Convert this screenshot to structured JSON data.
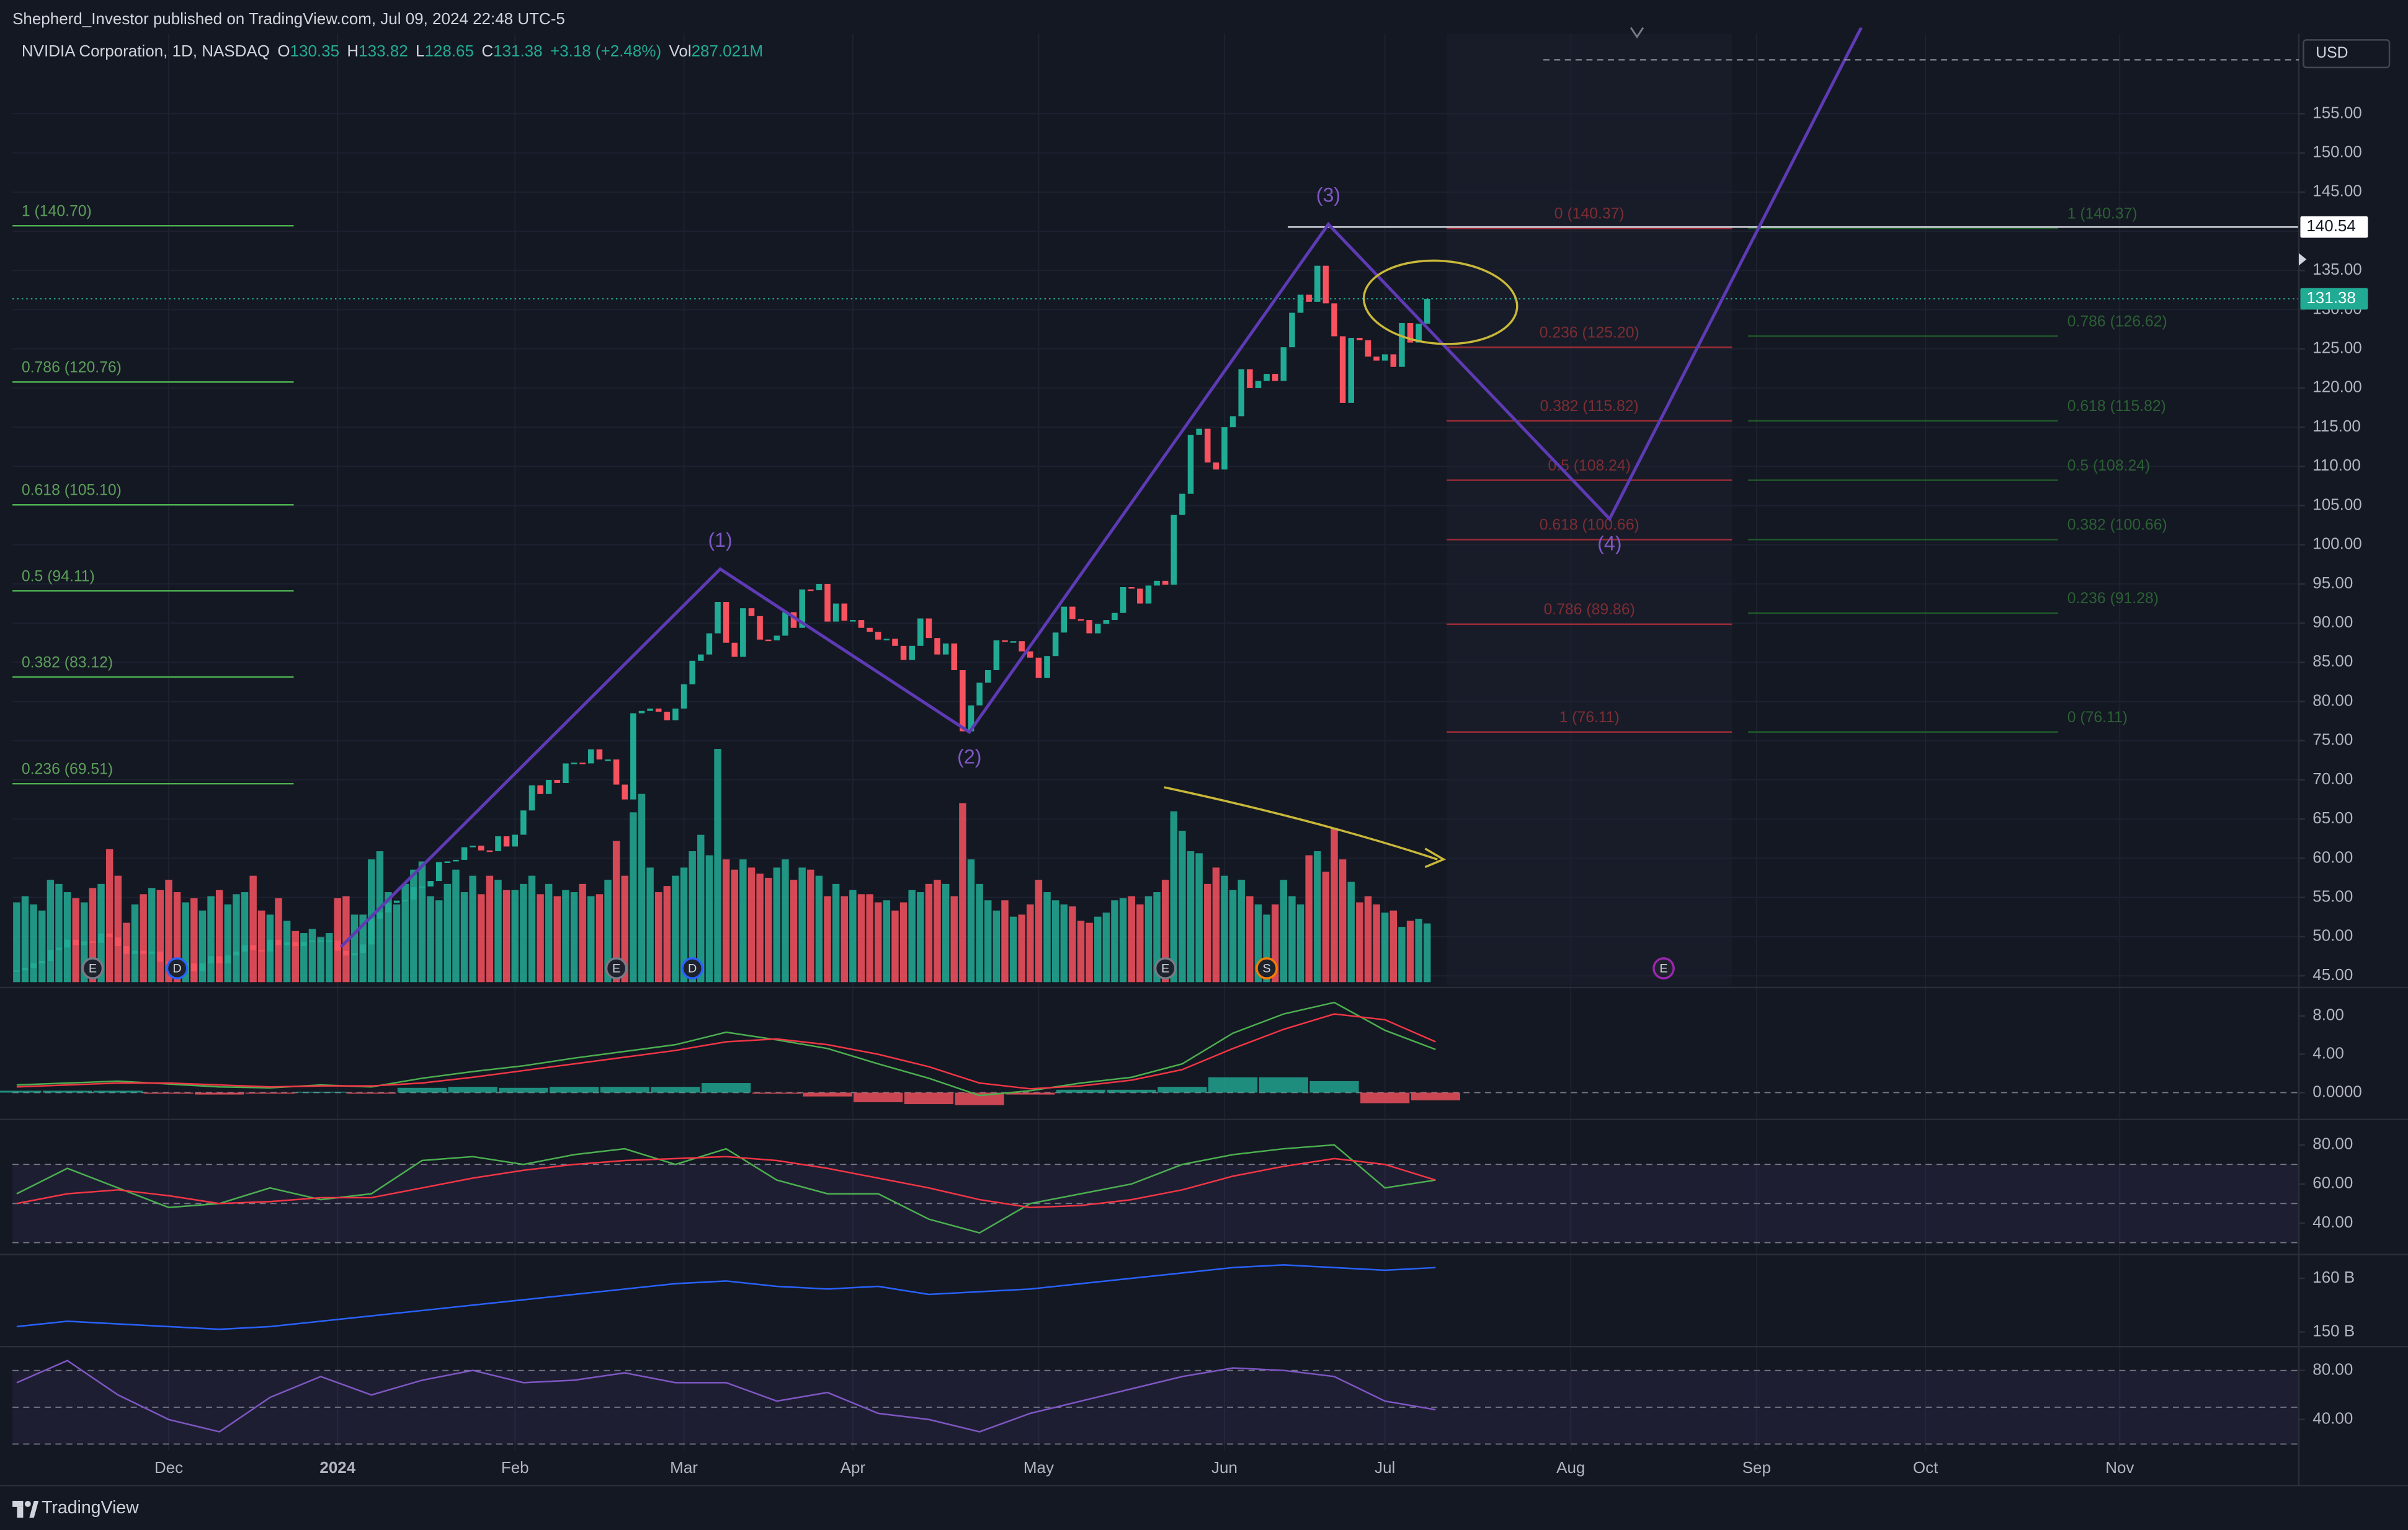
{
  "header": {
    "publisher": "Shepherd_Investor published on TradingView.com, Jul 09, 2024 22:48 UTC-5"
  },
  "footer": {
    "brand": "TradingView"
  },
  "chart_data": {
    "type": "candlestick",
    "title": "NVIDIA Corporation, 1D, NASDAQ",
    "ohlc": [
      {
        "label": "O",
        "value": "130.35"
      },
      {
        "label": "H",
        "value": "133.82"
      },
      {
        "label": "L",
        "value": "128.65"
      },
      {
        "label": "C",
        "value": "131.38"
      },
      {
        "value": "+3.18 (+2.48%)"
      },
      {
        "label": "Vol",
        "value": "287.021M"
      }
    ],
    "currency": "USD",
    "up_color": "#22ab94",
    "down_color": "#f7525f",
    "close": [
      45.7,
      46.0,
      46.6,
      46.9,
      48.3,
      48.6,
      49.6,
      48.9,
      49.4,
      49.2,
      50.4,
      49.9,
      48.8,
      47.8,
      48.2,
      47.8,
      48.1,
      46.8,
      46.5,
      45.5,
      46.6,
      45.6,
      46.6,
      47.5,
      46.6,
      47.6,
      48.1,
      48.9,
      48.3,
      48.1,
      49.6,
      48.9,
      49.3,
      48.8,
      49.3,
      49.5,
      49.5,
      49.5,
      48.2,
      47.6,
      47.9,
      49.0,
      52.3,
      53.1,
      54.3,
      54.6,
      54.7,
      56.3,
      56.4,
      57.1,
      59.5,
      59.6,
      59.8,
      61.4,
      61.6,
      61.0,
      60.9,
      62.8,
      61.5,
      63.0,
      66.1,
      69.3,
      68.2,
      70.0,
      69.6,
      72.1,
      72.2,
      72.1,
      73.9,
      72.6,
      72.6,
      69.4,
      67.5,
      78.5,
      78.8,
      79.1,
      78.7,
      77.6,
      79.1,
      82.2,
      85.2,
      86.0,
      88.7,
      92.7,
      87.5,
      85.7,
      91.9,
      90.9,
      87.9,
      87.8,
      88.4,
      91.4,
      89.4,
      94.3,
      94.2,
      95.0,
      90.2,
      92.5,
      90.3,
      90.4,
      89.4,
      88.9,
      87.9,
      88.0,
      87.1,
      85.3,
      87.1,
      90.6,
      88.1,
      86.0,
      87.4,
      84.0,
      76.2,
      79.5,
      82.4,
      84.0,
      87.8,
      87.7,
      87.7,
      86.4,
      85.6,
      83.0,
      85.8,
      88.8,
      92.1,
      90.5,
      90.4,
      88.7,
      89.9,
      90.4,
      91.3,
      94.6,
      94.4,
      92.5,
      94.8,
      95.4,
      94.9,
      103.8,
      106.5,
      114.0,
      114.8,
      110.5,
      109.6,
      115.0,
      116.4,
      122.4,
      120.0,
      120.9,
      121.8,
      120.9,
      125.2,
      129.6,
      131.9,
      131.0,
      135.6,
      130.8,
      126.6,
      118.1,
      126.4,
      126.1,
      124.0,
      123.5,
      124.3,
      122.7,
      128.3,
      125.8,
      128.2,
      131.38
    ],
    "volume": [
      390,
      420,
      380,
      350,
      500,
      480,
      440,
      410,
      390,
      460,
      480,
      650,
      520,
      290,
      380,
      430,
      460,
      450,
      500,
      440,
      390,
      410,
      350,
      420,
      450,
      380,
      430,
      440,
      520,
      350,
      330,
      410,
      300,
      250,
      240,
      260,
      220,
      240,
      410,
      420,
      330,
      330,
      600,
      640,
      440,
      380,
      480,
      550,
      590,
      420,
      400,
      480,
      550,
      440,
      520,
      430,
      520,
      500,
      450,
      450,
      480,
      520,
      430,
      480,
      420,
      450,
      440,
      480,
      420,
      430,
      500,
      690,
      520,
      830,
      920,
      560,
      440,
      470,
      520,
      560,
      640,
      720,
      620,
      1140,
      600,
      550,
      600,
      560,
      530,
      510,
      560,
      600,
      500,
      560,
      550,
      520,
      420,
      480,
      420,
      450,
      430,
      430,
      390,
      400,
      350,
      390,
      450,
      440,
      480,
      500,
      480,
      420,
      875,
      600,
      480,
      400,
      350,
      400,
      320,
      330,
      380,
      500,
      440,
      400,
      380,
      370,
      300,
      290,
      320,
      340,
      400,
      410,
      420,
      380,
      420,
      440,
      500,
      835,
      740,
      640,
      630,
      480,
      560,
      520,
      450,
      500,
      420,
      380,
      330,
      380,
      500,
      420,
      380,
      620,
      640,
      540,
      750,
      600,
      490,
      390,
      420,
      380,
      340,
      350,
      270,
      300,
      310,
      287
    ],
    "xlim": [
      -0.5,
      270.2
    ],
    "xticks": [
      {
        "value": 18,
        "label": "Dec"
      },
      {
        "value": 38,
        "label": "2024"
      },
      {
        "value": 59,
        "label": "Feb"
      },
      {
        "value": 79,
        "label": "Mar"
      },
      {
        "value": 99,
        "label": "Apr"
      },
      {
        "value": 121,
        "label": "May"
      },
      {
        "value": 143,
        "label": "Jun"
      },
      {
        "value": 162,
        "label": "Jul"
      },
      {
        "value": 184,
        "label": "Aug"
      },
      {
        "value": 206,
        "label": "Sep"
      },
      {
        "value": 226,
        "label": "Oct"
      },
      {
        "value": 249,
        "label": "Nov"
      }
    ],
    "ylim": [
      43.8,
      165.2
    ],
    "yticks": [
      {
        "value": 45,
        "label": "45.00"
      },
      {
        "value": 50,
        "label": "50.00"
      },
      {
        "value": 55,
        "label": "55.00"
      },
      {
        "value": 60,
        "label": "60.00"
      },
      {
        "value": 65,
        "label": "65.00"
      },
      {
        "value": 70,
        "label": "70.00"
      },
      {
        "value": 75,
        "label": "75.00"
      },
      {
        "value": 80,
        "label": "80.00"
      },
      {
        "value": 85,
        "label": "85.00"
      },
      {
        "value": 90,
        "label": "90.00"
      },
      {
        "value": 95,
        "label": "95.00"
      },
      {
        "value": 100,
        "label": "100.00"
      },
      {
        "value": 105,
        "label": "105.00"
      },
      {
        "value": 110,
        "label": "110.00"
      },
      {
        "value": 115,
        "label": "115.00"
      },
      {
        "value": 120,
        "label": "120.00"
      },
      {
        "value": 125,
        "label": "125.00"
      },
      {
        "value": 130,
        "label": "130.00"
      },
      {
        "value": 135,
        "label": "135.00"
      },
      {
        "value": 140,
        "label": "140.00"
      },
      {
        "value": 145,
        "label": "145.00"
      },
      {
        "value": 150,
        "label": "150.00"
      },
      {
        "value": 155,
        "label": "155.00"
      }
    ],
    "grid": true,
    "hline": {
      "value": 140.54,
      "x_start": 150.5
    },
    "fib_sets": [
      {
        "color": "#4caf50",
        "text_color": "#5c9e5a",
        "x": [
          -0.5,
          32.8
        ],
        "levels": [
          {
            "value": 140.7,
            "label": "1 (140.70)"
          },
          {
            "value": 120.76,
            "label": "0.786 (120.76)"
          },
          {
            "value": 105.1,
            "label": "0.618 (105.10)"
          },
          {
            "value": 94.11,
            "label": "0.5 (94.11)"
          },
          {
            "value": 83.12,
            "label": "0.382 (83.12)"
          },
          {
            "value": 69.51,
            "label": "0.236 (69.51)"
          }
        ]
      },
      {
        "color": "#9c2b35",
        "text_color": "#7d2d34",
        "x": [
          169.3,
          203.1
        ],
        "levels": [
          {
            "value": 140.37,
            "label": "0 (140.37)"
          },
          {
            "value": 125.2,
            "label": "0.236 (125.20)"
          },
          {
            "value": 115.82,
            "label": "0.382 (115.82)"
          },
          {
            "value": 108.24,
            "label": "0.5 (108.24)"
          },
          {
            "value": 100.66,
            "label": "0.618 (100.66)"
          },
          {
            "value": 89.86,
            "label": "0.786 (89.86)"
          },
          {
            "value": 76.11,
            "label": "1 (76.11)"
          }
        ]
      },
      {
        "color": "#1f5a2a",
        "text_color": "#2b6034",
        "x": [
          205.0,
          241.7
        ],
        "levels": [
          {
            "value": 140.37,
            "label": "1 (140.37)"
          },
          {
            "value": 126.62,
            "label": "0.786 (126.62)"
          },
          {
            "value": 115.82,
            "label": "0.618 (115.82)"
          },
          {
            "value": 108.24,
            "label": "0.5 (108.24)"
          },
          {
            "value": 100.66,
            "label": "0.382 (100.66)"
          },
          {
            "value": 91.28,
            "label": "0.236 (91.28)"
          },
          {
            "value": 76.11,
            "label": "0 (76.11)"
          }
        ]
      }
    ],
    "wave": {
      "color": "#5e3ab5",
      "points": [
        {
          "x": 38.4,
          "y": 48.7
        },
        {
          "x": 83.3,
          "y": 96.9,
          "label": "(1)"
        },
        {
          "x": 112.8,
          "y": 76.1,
          "label": "(2)"
        },
        {
          "x": 155.3,
          "y": 140.9,
          "label": "(3)"
        },
        {
          "x": 188.6,
          "y": 103.3,
          "label": "(4)"
        },
        {
          "x": 218.4,
          "y": 166.0
        }
      ]
    },
    "events": [
      {
        "x": 9,
        "label": "E",
        "color": "#787b86"
      },
      {
        "x": 19,
        "label": "D",
        "color": "#2962ff"
      },
      {
        "x": 71,
        "label": "E",
        "color": "#787b86"
      },
      {
        "x": 80,
        "label": "D",
        "color": "#2962ff"
      },
      {
        "x": 136,
        "label": "E",
        "color": "#787b86"
      },
      {
        "x": 148,
        "label": "S",
        "color": "#f57c00"
      },
      {
        "x": 195,
        "label": "E",
        "color": "#9c27b0"
      }
    ],
    "indicator_x": [
      0,
      6,
      12,
      18,
      24,
      30,
      36,
      42,
      48,
      54,
      60,
      66,
      72,
      78,
      84,
      90,
      96,
      102,
      108,
      114,
      120,
      126,
      132,
      138,
      144,
      150,
      156,
      162,
      168
    ],
    "indicators": [
      {
        "ylim": [
          -2.56,
          10.72
        ],
        "yticks": [
          {
            "value": 8,
            "label": "8.00"
          },
          {
            "value": 4,
            "label": "4.00"
          },
          {
            "value": 0,
            "label": "0.0000"
          }
        ],
        "bands": [
          0
        ],
        "histogram": [
          0.2,
          0.2,
          0.2,
          -0.1,
          -0.2,
          -0.1,
          0.1,
          -0.1,
          0.5,
          0.6,
          0.5,
          0.6,
          0.6,
          0.6,
          1.0,
          -0.1,
          -0.4,
          -1.0,
          -1.2,
          -1.3,
          -0.2,
          0.3,
          0.3,
          0.6,
          1.6,
          1.6,
          1.2,
          -1.1,
          -0.8
        ],
        "series": [
          {
            "color": "#4caf50",
            "values": [
              0.8,
              1.0,
              1.2,
              0.9,
              0.6,
              0.5,
              0.8,
              0.6,
              1.5,
              2.2,
              2.8,
              3.6,
              4.3,
              5.0,
              6.3,
              5.5,
              4.6,
              3.0,
              1.5,
              -0.3,
              0.2,
              1.0,
              1.6,
              3.0,
              6.2,
              8.2,
              9.4,
              6.5,
              4.5
            ]
          },
          {
            "color": "#f23645",
            "values": [
              0.6,
              0.8,
              1.0,
              1.0,
              0.8,
              0.6,
              0.7,
              0.7,
              1.0,
              1.6,
              2.3,
              3.0,
              3.7,
              4.4,
              5.3,
              5.6,
              5.0,
              4.0,
              2.7,
              1.0,
              0.4,
              0.7,
              1.3,
              2.4,
              4.6,
              6.6,
              8.2,
              7.6,
              5.3
            ]
          }
        ]
      },
      {
        "ylim": [
          25.1,
          91.8
        ],
        "yticks": [
          {
            "value": 80,
            "label": "80.00"
          },
          {
            "value": 60,
            "label": "60.00"
          },
          {
            "value": 40,
            "label": "40.00"
          }
        ],
        "bands": [
          70,
          50,
          30
        ],
        "series": [
          {
            "color": "#4caf50",
            "values": [
              55,
              68,
              58,
              48,
              50,
              58,
              52,
              55,
              72,
              74,
              70,
              75,
              78,
              70,
              78,
              62,
              55,
              55,
              42,
              35,
              50,
              55,
              60,
              70,
              75,
              78,
              80,
              58,
              62
            ]
          },
          {
            "color": "#f23645",
            "values": [
              50,
              55,
              57,
              54,
              50,
              51,
              53,
              53,
              58,
              63,
              67,
              70,
              72,
              73,
              74,
              72,
              68,
              63,
              58,
              52,
              48,
              49,
              52,
              57,
              64,
              69,
              73,
              70,
              62
            ]
          }
        ]
      },
      {
        "ylim": [
          147.7,
          164
        ],
        "yticks": [
          {
            "value": 160,
            "label": "160 B"
          },
          {
            "value": 150,
            "label": "150 B"
          }
        ],
        "bands": [],
        "series": [
          {
            "color": "#2962ff",
            "values": [
              151,
              152,
              151.5,
              151,
              150.5,
              151,
              152,
              153,
              154,
              155,
              156,
              157,
              158,
              159,
              159.5,
              158.5,
              158,
              158.5,
              157,
              157.5,
              158,
              159,
              160,
              161,
              162,
              162.5,
              162,
              161.5,
              162
            ]
          }
        ]
      },
      {
        "ylim": [
          15,
          97.5
        ],
        "yticks": [
          {
            "value": 80,
            "label": "80.00"
          },
          {
            "value": 40,
            "label": "40.00"
          }
        ],
        "bands": [
          80,
          50,
          20
        ],
        "series": [
          {
            "color": "#7e57c2",
            "values": [
              70,
              88,
              60,
              40,
              30,
              58,
              75,
              60,
              72,
              80,
              70,
              72,
              78,
              70,
              70,
              55,
              62,
              45,
              40,
              30,
              45,
              55,
              65,
              75,
              82,
              80,
              75,
              55,
              48
            ]
          }
        ]
      }
    ]
  }
}
